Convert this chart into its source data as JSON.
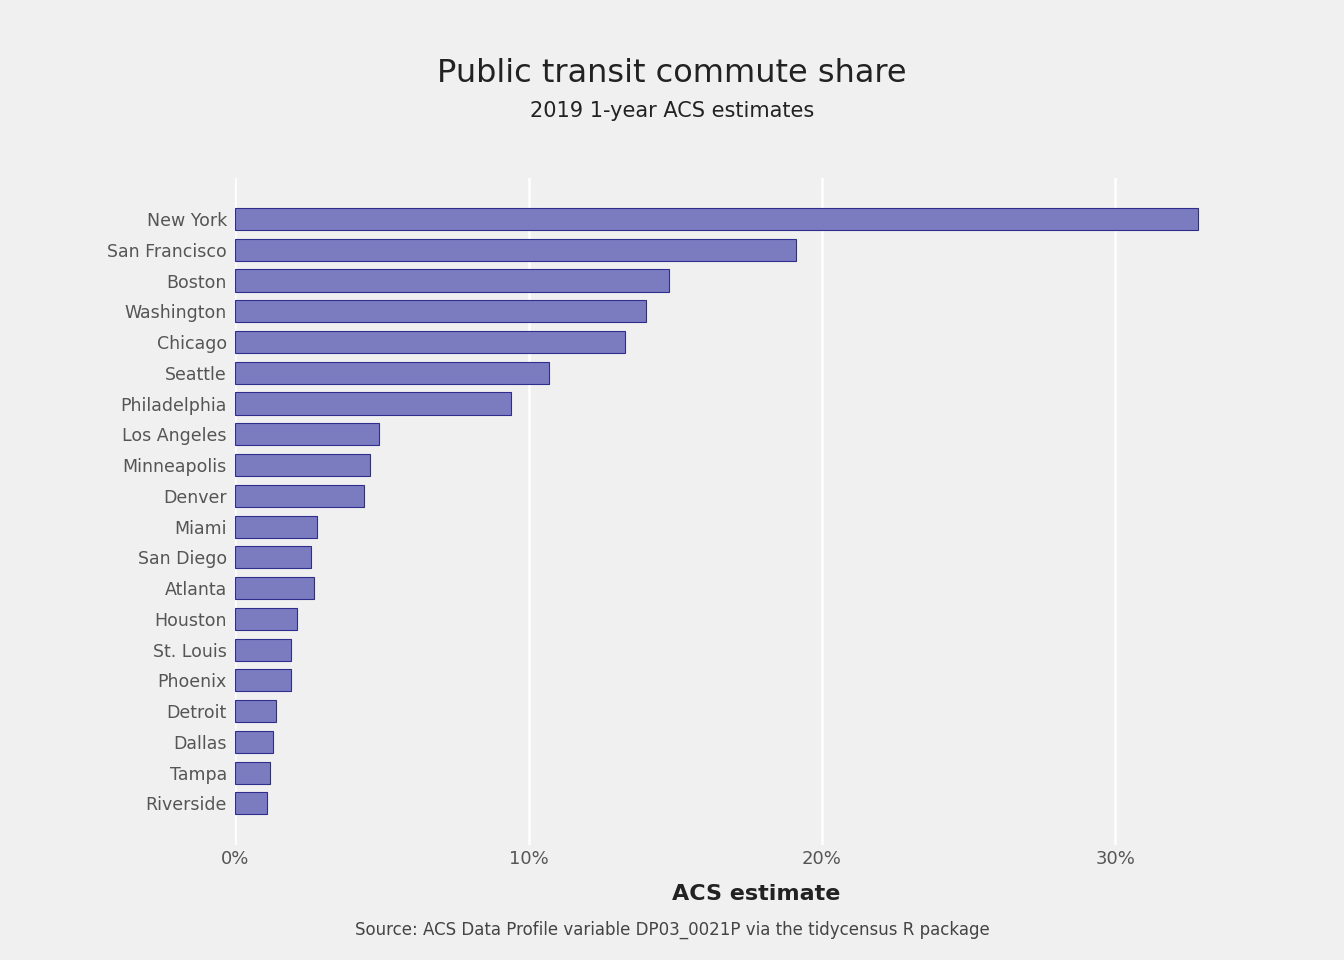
{
  "title": "Public transit commute share",
  "subtitle": "2019 1-year ACS estimates",
  "xlabel": "ACS estimate",
  "caption": "Source: ACS Data Profile variable DP03_0021P via the tidycensus R package",
  "cities": [
    "New York",
    "San Francisco",
    "Boston",
    "Washington",
    "Chicago",
    "Seattle",
    "Philadelphia",
    "Los Angeles",
    "Minneapolis",
    "Denver",
    "Miami",
    "San Diego",
    "Atlanta",
    "Houston",
    "St. Louis",
    "Phoenix",
    "Detroit",
    "Dallas",
    "Tampa",
    "Riverside"
  ],
  "values": [
    0.328,
    0.191,
    0.148,
    0.14,
    0.133,
    0.107,
    0.094,
    0.049,
    0.046,
    0.044,
    0.028,
    0.026,
    0.027,
    0.021,
    0.019,
    0.019,
    0.014,
    0.013,
    0.012,
    0.011
  ],
  "bar_color": "#7b7cbf",
  "bar_edge_color": "#2e2e8f",
  "background_color": "#f0f0f0",
  "panel_background": "#f0f0f0",
  "grid_color": "#ffffff",
  "axis_text_color": "#555555",
  "title_color": "#222222",
  "caption_color": "#444444",
  "bar_width": 0.72,
  "xlim": [
    0,
    0.355
  ]
}
